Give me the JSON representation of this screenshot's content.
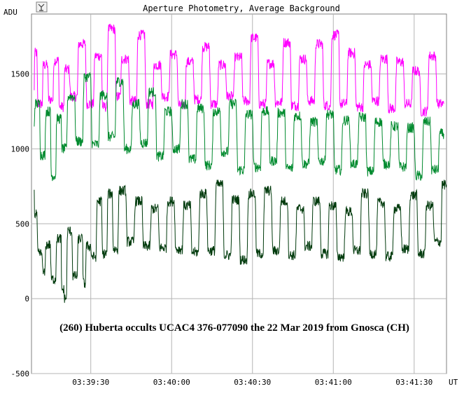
{
  "toolbar": {
    "icon": "chart-settings-icon"
  },
  "chart_data": {
    "type": "line",
    "title": "Aperture Photometry, Average Background",
    "annotation": "(260) Huberta occults UCAC4 376-077090 the 22 Mar 2019 from Gnosca (CH)",
    "ylabel": "ADU",
    "xlabel": "UT",
    "xlim": [
      "03:39:08",
      "03:41:42"
    ],
    "ylim": [
      -500,
      1900
    ],
    "yticks": [
      1500,
      1000,
      500,
      0,
      -500
    ],
    "xticks": [
      "03:39:30",
      "03:40:00",
      "03:40:30",
      "03:41:00",
      "03:41:30"
    ],
    "grid": true,
    "background": "#ffffff",
    "gridColor": "#b4b4b4",
    "series": [
      {
        "color": "#ff00ff",
        "samples_note": "magenta trace, comparison star",
        "keyframes": [
          [
            "03:39:09",
            1380
          ],
          [
            "03:39:10",
            1640
          ],
          [
            "03:39:12",
            1300
          ],
          [
            "03:39:14",
            1560
          ],
          [
            "03:39:16",
            1330
          ],
          [
            "03:39:18",
            1590
          ],
          [
            "03:39:20",
            1280
          ],
          [
            "03:39:22",
            1530
          ],
          [
            "03:39:25",
            1350
          ],
          [
            "03:39:28",
            1700
          ],
          [
            "03:39:31",
            1300
          ],
          [
            "03:39:34",
            1620
          ],
          [
            "03:39:36",
            1280
          ],
          [
            "03:39:39",
            1800
          ],
          [
            "03:39:41",
            1350
          ],
          [
            "03:39:44",
            1600
          ],
          [
            "03:39:47",
            1320
          ],
          [
            "03:39:50",
            1760
          ],
          [
            "03:39:53",
            1300
          ],
          [
            "03:39:56",
            1560
          ],
          [
            "03:39:59",
            1350
          ],
          [
            "03:40:02",
            1630
          ],
          [
            "03:40:05",
            1290
          ],
          [
            "03:40:08",
            1580
          ],
          [
            "03:40:11",
            1330
          ],
          [
            "03:40:14",
            1680
          ],
          [
            "03:40:17",
            1300
          ],
          [
            "03:40:20",
            1560
          ],
          [
            "03:40:23",
            1350
          ],
          [
            "03:40:26",
            1610
          ],
          [
            "03:40:29",
            1320
          ],
          [
            "03:40:32",
            1740
          ],
          [
            "03:40:35",
            1300
          ],
          [
            "03:40:38",
            1570
          ],
          [
            "03:40:41",
            1310
          ],
          [
            "03:40:44",
            1710
          ],
          [
            "03:40:47",
            1290
          ],
          [
            "03:40:50",
            1600
          ],
          [
            "03:40:53",
            1320
          ],
          [
            "03:40:56",
            1700
          ],
          [
            "03:40:59",
            1290
          ],
          [
            "03:41:02",
            1760
          ],
          [
            "03:41:05",
            1300
          ],
          [
            "03:41:08",
            1640
          ],
          [
            "03:41:11",
            1280
          ],
          [
            "03:41:14",
            1560
          ],
          [
            "03:41:17",
            1320
          ],
          [
            "03:41:20",
            1600
          ],
          [
            "03:41:23",
            1270
          ],
          [
            "03:41:26",
            1580
          ],
          [
            "03:41:29",
            1300
          ],
          [
            "03:41:32",
            1520
          ],
          [
            "03:41:35",
            1250
          ],
          [
            "03:41:38",
            1620
          ],
          [
            "03:41:41",
            1300
          ]
        ]
      },
      {
        "color": "#008a2e",
        "samples_note": "green trace, target + comparison",
        "keyframes": [
          [
            "03:39:09",
            1150
          ],
          [
            "03:39:11",
            1300
          ],
          [
            "03:39:13",
            960
          ],
          [
            "03:39:15",
            1250
          ],
          [
            "03:39:17",
            820
          ],
          [
            "03:39:19",
            1200
          ],
          [
            "03:39:21",
            1000
          ],
          [
            "03:39:24",
            1350
          ],
          [
            "03:39:27",
            1050
          ],
          [
            "03:39:30",
            1480
          ],
          [
            "03:39:33",
            1030
          ],
          [
            "03:39:36",
            1360
          ],
          [
            "03:39:39",
            1080
          ],
          [
            "03:39:42",
            1450
          ],
          [
            "03:39:45",
            1000
          ],
          [
            "03:39:48",
            1300
          ],
          [
            "03:39:51",
            1040
          ],
          [
            "03:39:54",
            1380
          ],
          [
            "03:39:57",
            950
          ],
          [
            "03:40:00",
            1250
          ],
          [
            "03:40:03",
            1000
          ],
          [
            "03:40:06",
            1300
          ],
          [
            "03:40:09",
            930
          ],
          [
            "03:40:12",
            1270
          ],
          [
            "03:40:15",
            890
          ],
          [
            "03:40:18",
            1250
          ],
          [
            "03:40:21",
            980
          ],
          [
            "03:40:24",
            1300
          ],
          [
            "03:40:27",
            860
          ],
          [
            "03:40:30",
            1230
          ],
          [
            "03:40:33",
            880
          ],
          [
            "03:40:36",
            1250
          ],
          [
            "03:40:39",
            920
          ],
          [
            "03:40:42",
            1240
          ],
          [
            "03:40:45",
            870
          ],
          [
            "03:40:48",
            1220
          ],
          [
            "03:40:51",
            900
          ],
          [
            "03:40:54",
            1180
          ],
          [
            "03:40:57",
            920
          ],
          [
            "03:41:00",
            1230
          ],
          [
            "03:41:03",
            860
          ],
          [
            "03:41:06",
            1190
          ],
          [
            "03:41:09",
            900
          ],
          [
            "03:41:12",
            1210
          ],
          [
            "03:41:15",
            850
          ],
          [
            "03:41:18",
            1180
          ],
          [
            "03:41:21",
            900
          ],
          [
            "03:41:24",
            1150
          ],
          [
            "03:41:27",
            880
          ],
          [
            "03:41:30",
            1140
          ],
          [
            "03:41:33",
            820
          ],
          [
            "03:41:36",
            1180
          ],
          [
            "03:41:39",
            860
          ],
          [
            "03:41:41",
            1100
          ]
        ]
      },
      {
        "color": "#003a0c",
        "samples_note": "dark green trace, target star",
        "keyframes": [
          [
            "03:39:09",
            700
          ],
          [
            "03:39:10",
            560
          ],
          [
            "03:39:12",
            300
          ],
          [
            "03:39:13",
            170
          ],
          [
            "03:39:15",
            360
          ],
          [
            "03:39:17",
            130
          ],
          [
            "03:39:19",
            400
          ],
          [
            "03:39:20",
            60
          ],
          [
            "03:39:21",
            5
          ],
          [
            "03:39:23",
            450
          ],
          [
            "03:39:25",
            150
          ],
          [
            "03:39:27",
            400
          ],
          [
            "03:39:28",
            100
          ],
          [
            "03:39:30",
            350
          ],
          [
            "03:39:32",
            280
          ],
          [
            "03:39:34",
            650
          ],
          [
            "03:39:36",
            300
          ],
          [
            "03:39:38",
            700
          ],
          [
            "03:39:40",
            330
          ],
          [
            "03:39:43",
            720
          ],
          [
            "03:39:46",
            380
          ],
          [
            "03:39:49",
            650
          ],
          [
            "03:39:52",
            350
          ],
          [
            "03:39:55",
            600
          ],
          [
            "03:39:58",
            340
          ],
          [
            "03:40:01",
            650
          ],
          [
            "03:40:04",
            330
          ],
          [
            "03:40:07",
            620
          ],
          [
            "03:40:10",
            310
          ],
          [
            "03:40:13",
            700
          ],
          [
            "03:40:16",
            320
          ],
          [
            "03:40:19",
            760
          ],
          [
            "03:40:22",
            290
          ],
          [
            "03:40:25",
            660
          ],
          [
            "03:40:28",
            260
          ],
          [
            "03:40:31",
            700
          ],
          [
            "03:40:34",
            300
          ],
          [
            "03:40:37",
            720
          ],
          [
            "03:40:40",
            320
          ],
          [
            "03:40:43",
            650
          ],
          [
            "03:40:46",
            290
          ],
          [
            "03:40:49",
            600
          ],
          [
            "03:40:52",
            350
          ],
          [
            "03:40:55",
            650
          ],
          [
            "03:40:58",
            300
          ],
          [
            "03:41:01",
            620
          ],
          [
            "03:41:04",
            280
          ],
          [
            "03:41:07",
            580
          ],
          [
            "03:41:10",
            320
          ],
          [
            "03:41:13",
            700
          ],
          [
            "03:41:16",
            300
          ],
          [
            "03:41:19",
            640
          ],
          [
            "03:41:22",
            280
          ],
          [
            "03:41:25",
            600
          ],
          [
            "03:41:28",
            330
          ],
          [
            "03:41:31",
            690
          ],
          [
            "03:41:34",
            300
          ],
          [
            "03:41:37",
            620
          ],
          [
            "03:41:40",
            380
          ],
          [
            "03:41:42",
            760
          ]
        ]
      }
    ]
  }
}
